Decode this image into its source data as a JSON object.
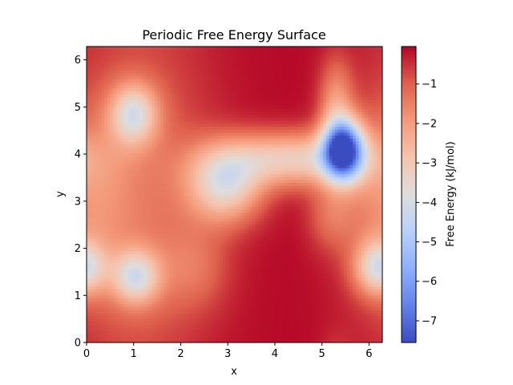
{
  "chart_data": {
    "type": "heatmap",
    "title": "Periodic Free Energy Surface",
    "xlabel": "x",
    "ylabel": "y",
    "xlim": [
      0,
      6.283
    ],
    "ylim": [
      0,
      6.283
    ],
    "x_ticks": [
      0,
      1,
      2,
      3,
      4,
      5,
      6
    ],
    "y_ticks": [
      0,
      1,
      2,
      3,
      4,
      5,
      6
    ],
    "grid": false,
    "colormap": "coolwarm",
    "colorbar": {
      "label": "Free Energy (kJ/mol)",
      "range": [
        -7.55,
        -0.05
      ],
      "ticks": [
        -7,
        -6,
        -5,
        -4,
        -3,
        -2,
        -1
      ],
      "tick_labels": [
        "−7",
        "−6",
        "−5",
        "−4",
        "−3",
        "−2",
        "−1"
      ]
    },
    "grid_resolution": [
      100,
      100
    ],
    "features": [
      {
        "kind": "deep minimum",
        "x": 5.45,
        "y": 4.1,
        "value": -7.5
      },
      {
        "kind": "shallow basin",
        "x": 3.0,
        "y": 3.35,
        "value": -4.2
      },
      {
        "kind": "channel",
        "x": 4.3,
        "y": 3.85,
        "value": -4.6
      },
      {
        "kind": "local minimum",
        "x": 1.05,
        "y": 1.4,
        "value": -3.9
      },
      {
        "kind": "local minimum",
        "x": 1.0,
        "y": 4.85,
        "value": -3.6
      },
      {
        "kind": "local minimum",
        "x": 6.2,
        "y": 1.6,
        "value": -3.7
      },
      {
        "kind": "high ridge",
        "x": 4.1,
        "y": 0.6,
        "value": -0.1
      },
      {
        "kind": "high ridge",
        "x": 3.5,
        "y": 6.0,
        "value": -0.2
      }
    ]
  }
}
